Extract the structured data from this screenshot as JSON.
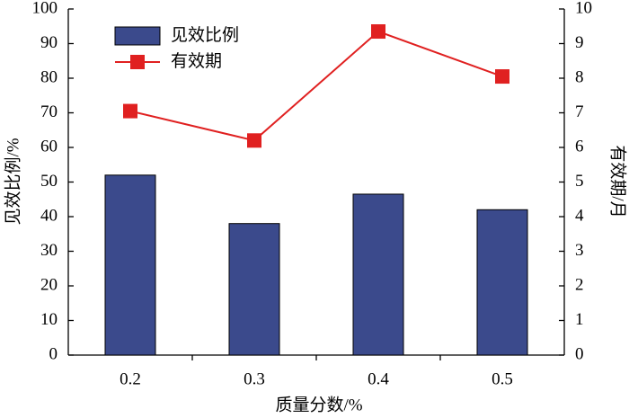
{
  "chart_data": {
    "type": "combo",
    "categories": [
      "0.2",
      "0.3",
      "0.4",
      "0.5"
    ],
    "series": [
      {
        "name": "见效比例",
        "type": "bar",
        "color": "#3b4a8c",
        "values": [
          52,
          38,
          46.5,
          42
        ]
      },
      {
        "name": "有效期",
        "type": "line",
        "color": "#e02020",
        "values": [
          7.05,
          6.2,
          9.35,
          8.05
        ],
        "axis": "y2"
      }
    ],
    "x_label": "质量分数/%",
    "y_label": "见效比例/%",
    "y2_label": "有效期/月",
    "ylim": [
      0,
      100
    ],
    "yticks": [
      0,
      10,
      20,
      30,
      40,
      50,
      60,
      70,
      80,
      90,
      100
    ],
    "y2lim": [
      0,
      10
    ],
    "y2ticks": [
      0,
      1,
      2,
      3,
      4,
      5,
      6,
      7,
      8,
      9,
      10
    ],
    "legend": "upper-left"
  }
}
